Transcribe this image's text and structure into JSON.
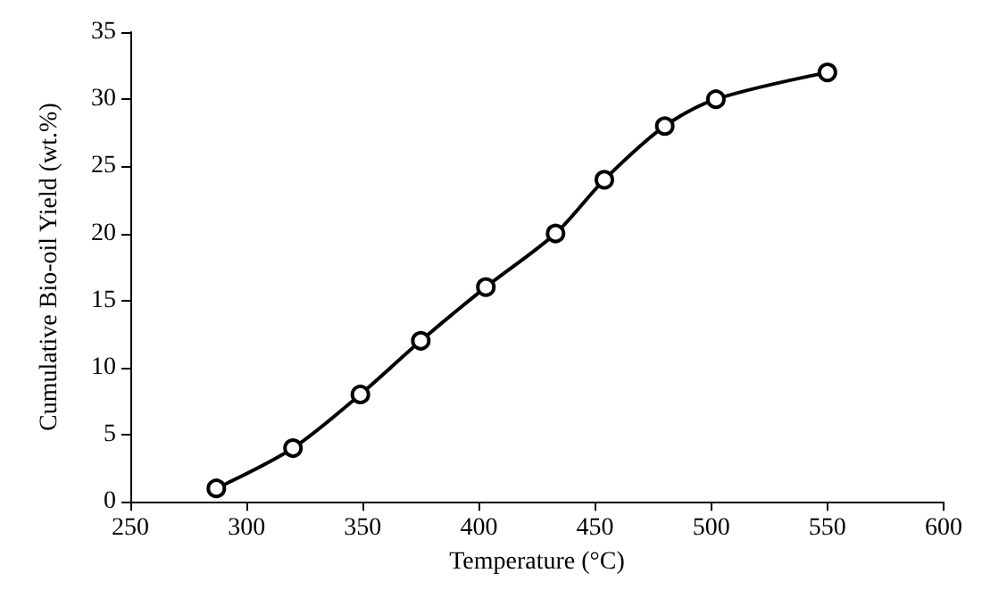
{
  "chart_data": {
    "type": "line",
    "xlabel": "Temperature (°C)",
    "ylabel": "Cumulative Bio-oil Yield (wt.%)",
    "x": [
      287,
      320,
      349,
      375,
      403,
      433,
      454,
      480,
      502,
      550
    ],
    "series": [
      {
        "color": "#000000",
        "values": [
          1,
          4,
          8,
          12,
          16,
          20,
          24,
          28,
          30,
          32
        ]
      }
    ],
    "xlim": [
      250,
      600
    ],
    "xticks": [
      250,
      300,
      350,
      400,
      450,
      500,
      550,
      600
    ],
    "ylim": [
      0,
      35
    ],
    "yticks": [
      0,
      5,
      10,
      15,
      20,
      25,
      30,
      35
    ],
    "grid": false,
    "marker": "circle",
    "line_style": "solid"
  }
}
